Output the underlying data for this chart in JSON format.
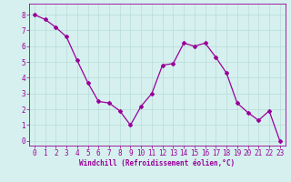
{
  "x": [
    0,
    1,
    2,
    3,
    4,
    5,
    6,
    7,
    8,
    9,
    10,
    11,
    12,
    13,
    14,
    15,
    16,
    17,
    18,
    19,
    20,
    21,
    22,
    23
  ],
  "y": [
    8.0,
    7.7,
    7.2,
    6.6,
    5.1,
    3.7,
    2.5,
    2.4,
    1.9,
    1.0,
    2.2,
    3.0,
    4.8,
    4.9,
    6.2,
    6.0,
    6.2,
    5.3,
    4.3,
    2.4,
    1.8,
    1.3,
    1.9,
    0.0
  ],
  "line_color": "#990099",
  "marker": "D",
  "marker_size": 2,
  "bg_color": "#d5f0ee",
  "grid_color": "#b8dcd8",
  "axis_color": "#990099",
  "tick_color": "#990099",
  "xlabel": "Windchill (Refroidissement éolien,°C)",
  "xlim": [
    -0.5,
    23.5
  ],
  "ylim": [
    -0.3,
    8.7
  ],
  "yticks": [
    0,
    1,
    2,
    3,
    4,
    5,
    6,
    7,
    8
  ],
  "xticks": [
    0,
    1,
    2,
    3,
    4,
    5,
    6,
    7,
    8,
    9,
    10,
    11,
    12,
    13,
    14,
    15,
    16,
    17,
    18,
    19,
    20,
    21,
    22,
    23
  ],
  "xlabel_fontsize": 5.5,
  "tick_fontsize": 5.5,
  "linewidth": 0.9
}
